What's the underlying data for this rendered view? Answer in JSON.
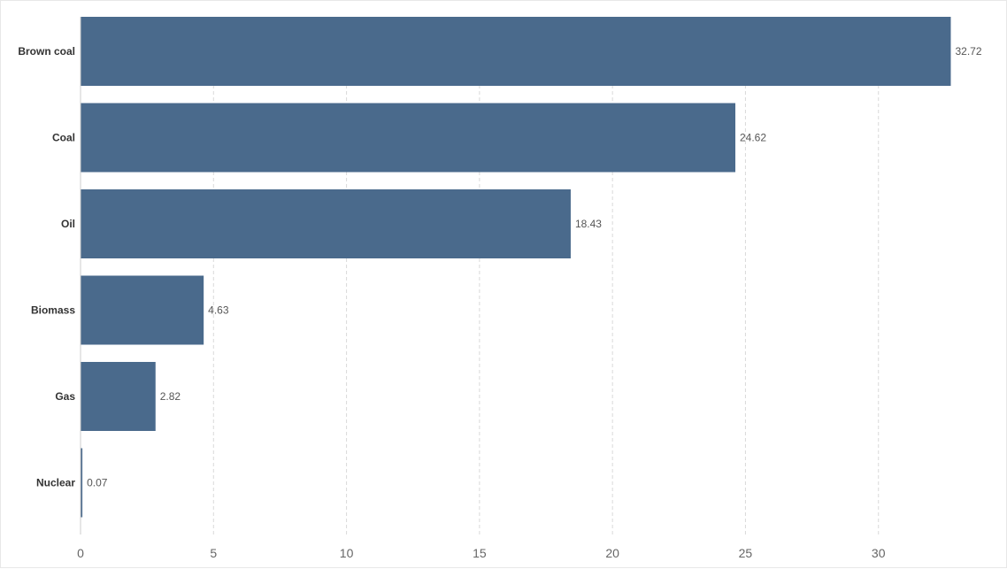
{
  "chart_data": {
    "type": "bar",
    "orientation": "horizontal",
    "title": "",
    "xlabel": "",
    "ylabel": "",
    "categories": [
      "Brown coal",
      "Coal",
      "Oil",
      "Biomass",
      "Gas",
      "Nuclear"
    ],
    "values": [
      32.72,
      24.62,
      18.43,
      4.63,
      2.82,
      0.07
    ],
    "value_labels": [
      "32.72",
      "24.62",
      "18.43",
      "4.63",
      "2.82",
      "0.07"
    ],
    "xlim": [
      0,
      34.8
    ],
    "xticks": [
      0,
      5,
      10,
      15,
      20,
      25,
      30
    ],
    "xtick_labels": [
      "0",
      "5",
      "10",
      "15",
      "20",
      "25",
      "30"
    ],
    "grid": "vertical dashed",
    "bar_color": "#4a6a8c",
    "legend": "none"
  }
}
